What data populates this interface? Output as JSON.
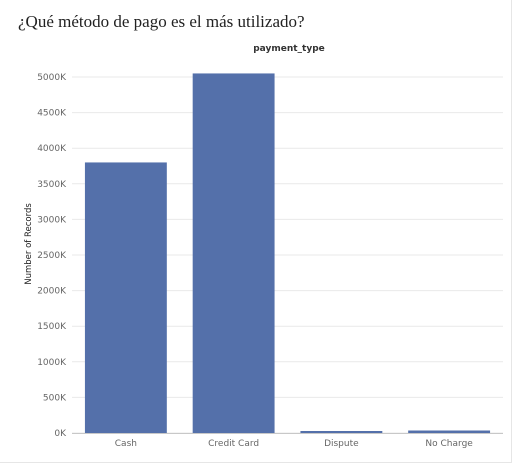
{
  "title": "¿Qué método de pago es el más utilizado?",
  "colors": {
    "bar": "#5470aa",
    "grid": "#e9e9e9",
    "axis": "#c8c8c8"
  },
  "chart_data": {
    "type": "bar",
    "header": "payment_type",
    "categories": [
      "Cash",
      "Credit Card",
      "Dispute",
      "No Charge"
    ],
    "values": [
      3800000,
      5050000,
      15000,
      35000
    ],
    "ylabel": "Number of Records",
    "xlabel": "",
    "ylim": [
      0,
      5000000
    ],
    "yticks": [
      0,
      500000,
      1000000,
      1500000,
      2000000,
      2500000,
      3000000,
      3500000,
      4000000,
      4500000,
      5000000
    ],
    "ytick_labels": [
      "0K",
      "500K",
      "1000K",
      "1500K",
      "2000K",
      "2500K",
      "3000K",
      "3500K",
      "4000K",
      "4500K",
      "5000K"
    ],
    "grid": true,
    "legend": "none"
  }
}
